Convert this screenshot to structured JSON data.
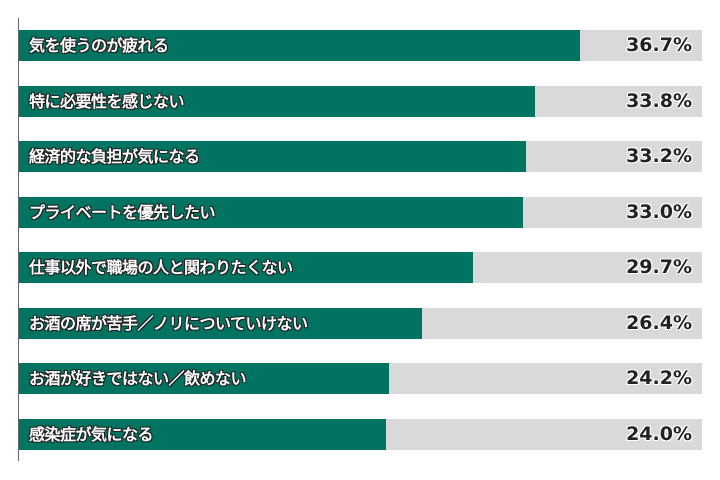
{
  "chart_data": {
    "type": "bar",
    "orientation": "horizontal",
    "title": "",
    "xlabel": "",
    "ylabel": "",
    "xlim": [
      0,
      44.7
    ],
    "grid": false,
    "legend": null,
    "categories": [
      "気を使うのが疲れる",
      "特に必要性を感じない",
      "経済的な負担が気になる",
      "プライベートを優先したい",
      "仕事以外で職場の人と関わりたくない",
      "お酒の席が苦手／ノリについていけない",
      "お酒が好きではない／飲めない",
      "感染症が気になる"
    ],
    "values": [
      36.7,
      33.8,
      33.2,
      33.0,
      29.7,
      26.4,
      24.2,
      24.0
    ],
    "value_labels": [
      "36.7%",
      "33.8%",
      "33.2%",
      "33.0%",
      "29.7%",
      "26.4%",
      "24.2%",
      "24.0%"
    ],
    "colors": {
      "bar": "#007361",
      "track": "#d9d9d9",
      "axis": "#666666"
    }
  }
}
